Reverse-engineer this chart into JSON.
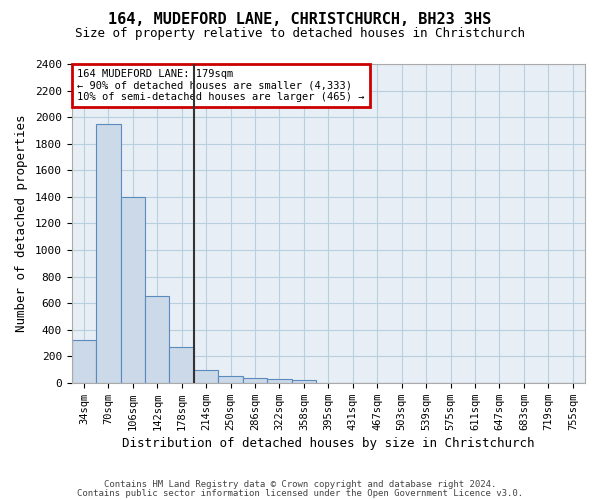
{
  "title": "164, MUDEFORD LANE, CHRISTCHURCH, BH23 3HS",
  "subtitle": "Size of property relative to detached houses in Christchurch",
  "xlabel": "Distribution of detached houses by size in Christchurch",
  "ylabel": "Number of detached properties",
  "bar_color": "#ccd9e8",
  "bar_edge_color": "#5b8abf",
  "grid_color": "#b8cfe0",
  "background_color": "#e8eef5",
  "property_line_color": "#333333",
  "annotation_text": "164 MUDEFORD LANE: 179sqm\n← 90% of detached houses are smaller (4,333)\n10% of semi-detached houses are larger (465) →",
  "annotation_box_color": "#cc0000",
  "footnote1": "Contains HM Land Registry data © Crown copyright and database right 2024.",
  "footnote2": "Contains public sector information licensed under the Open Government Licence v3.0.",
  "bin_labels": [
    "34sqm",
    "70sqm",
    "106sqm",
    "142sqm",
    "178sqm",
    "214sqm",
    "250sqm",
    "286sqm",
    "322sqm",
    "358sqm",
    "395sqm",
    "431sqm",
    "467sqm",
    "503sqm",
    "539sqm",
    "575sqm",
    "611sqm",
    "647sqm",
    "683sqm",
    "719sqm",
    "755sqm"
  ],
  "bin_values": [
    320,
    1950,
    1400,
    650,
    270,
    100,
    55,
    40,
    30,
    20,
    0,
    0,
    0,
    0,
    0,
    0,
    0,
    0,
    0,
    0,
    0
  ],
  "ylim": [
    0,
    2400
  ],
  "yticks": [
    0,
    200,
    400,
    600,
    800,
    1000,
    1200,
    1400,
    1600,
    1800,
    2000,
    2200,
    2400
  ],
  "property_bar_index": 4
}
